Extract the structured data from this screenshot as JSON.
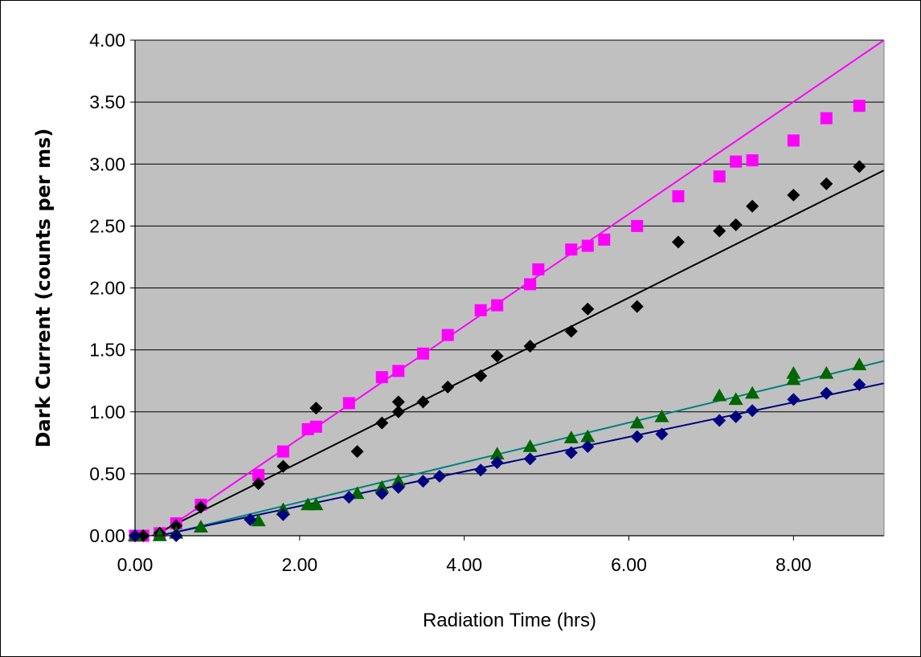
{
  "chart_data": {
    "type": "scatter",
    "title": "",
    "xlabel": "Radiation Time (hrs)",
    "ylabel": "Dark Current (counts per ms)",
    "xlim": [
      0,
      9.1
    ],
    "ylim": [
      0,
      4.0
    ],
    "x_ticks": [
      0,
      2,
      4,
      6,
      8
    ],
    "x_tick_labels": [
      "0.00",
      "2.00",
      "4.00",
      "6.00",
      "8.00"
    ],
    "y_ticks": [
      0,
      0.5,
      1,
      1.5,
      2,
      2.5,
      3,
      3.5,
      4
    ],
    "y_tick_labels": [
      "0.00",
      "0.50",
      "1.00",
      "1.50",
      "2.00",
      "2.50",
      "3.00",
      "3.50",
      "4.00"
    ],
    "grid": "horizontal",
    "legend": "none",
    "plot_background": "#c0c0c0",
    "series": [
      {
        "marker": "square",
        "color": "#ff00ff",
        "points": [
          [
            0.0,
            0.0
          ],
          [
            0.1,
            0.0
          ],
          [
            0.3,
            0.02
          ],
          [
            0.5,
            0.1
          ],
          [
            0.8,
            0.25
          ],
          [
            1.5,
            0.49
          ],
          [
            1.8,
            0.68
          ],
          [
            2.1,
            0.86
          ],
          [
            2.2,
            0.88
          ],
          [
            2.6,
            1.07
          ],
          [
            3.0,
            1.28
          ],
          [
            3.2,
            1.33
          ],
          [
            3.5,
            1.47
          ],
          [
            3.8,
            1.62
          ],
          [
            4.2,
            1.82
          ],
          [
            4.4,
            1.86
          ],
          [
            4.8,
            2.03
          ],
          [
            4.9,
            2.15
          ],
          [
            5.3,
            2.31
          ],
          [
            5.5,
            2.34
          ],
          [
            5.7,
            2.39
          ],
          [
            6.1,
            2.5
          ],
          [
            6.6,
            2.74
          ],
          [
            7.1,
            2.9
          ],
          [
            7.3,
            3.02
          ],
          [
            7.5,
            3.03
          ],
          [
            8.0,
            3.19
          ],
          [
            8.4,
            3.37
          ],
          [
            8.8,
            3.47
          ]
        ],
        "trendline": {
          "color": "#ff00ff",
          "x": [
            0,
            9.1
          ],
          "y": [
            -0.12,
            4.0
          ]
        }
      },
      {
        "marker": "diamond",
        "color": "#000000",
        "points": [
          [
            0.0,
            0.0
          ],
          [
            0.1,
            0.0
          ],
          [
            0.3,
            0.02
          ],
          [
            0.5,
            0.08
          ],
          [
            0.8,
            0.23
          ],
          [
            1.5,
            0.42
          ],
          [
            1.8,
            0.56
          ],
          [
            2.2,
            1.03
          ],
          [
            2.7,
            0.68
          ],
          [
            3.0,
            0.91
          ],
          [
            3.2,
            1.0
          ],
          [
            3.2,
            1.08
          ],
          [
            3.5,
            1.08
          ],
          [
            3.8,
            1.2
          ],
          [
            4.2,
            1.29
          ],
          [
            4.4,
            1.45
          ],
          [
            4.8,
            1.53
          ],
          [
            5.3,
            1.65
          ],
          [
            5.5,
            1.83
          ],
          [
            6.1,
            1.85
          ],
          [
            6.6,
            2.37
          ],
          [
            7.1,
            2.46
          ],
          [
            7.3,
            2.51
          ],
          [
            7.5,
            2.66
          ],
          [
            8.0,
            2.75
          ],
          [
            8.4,
            2.84
          ],
          [
            8.8,
            2.98
          ]
        ],
        "trendline": {
          "color": "#000000",
          "x": [
            0,
            9.1
          ],
          "y": [
            -0.07,
            2.95
          ]
        }
      },
      {
        "marker": "triangle",
        "color": "#006600",
        "points": [
          [
            0.0,
            0.0
          ],
          [
            0.3,
            0.0
          ],
          [
            0.5,
            0.02
          ],
          [
            0.8,
            0.07
          ],
          [
            1.5,
            0.12
          ],
          [
            1.8,
            0.21
          ],
          [
            2.1,
            0.25
          ],
          [
            2.2,
            0.25
          ],
          [
            2.7,
            0.34
          ],
          [
            3.0,
            0.39
          ],
          [
            3.2,
            0.44
          ],
          [
            4.4,
            0.66
          ],
          [
            4.8,
            0.72
          ],
          [
            5.3,
            0.79
          ],
          [
            5.5,
            0.8
          ],
          [
            6.1,
            0.91
          ],
          [
            6.4,
            0.96
          ],
          [
            7.1,
            1.13
          ],
          [
            7.3,
            1.1
          ],
          [
            7.5,
            1.15
          ],
          [
            8.0,
            1.26
          ],
          [
            8.0,
            1.31
          ],
          [
            8.4,
            1.31
          ],
          [
            8.8,
            1.38
          ]
        ],
        "trendline": {
          "color": "#008080",
          "x": [
            0,
            9.1
          ],
          "y": [
            -0.05,
            1.41
          ]
        }
      },
      {
        "marker": "diamond",
        "color": "#000080",
        "points": [
          [
            0.0,
            0.0
          ],
          [
            0.5,
            0.0
          ],
          [
            1.4,
            0.13
          ],
          [
            1.8,
            0.17
          ],
          [
            2.6,
            0.31
          ],
          [
            3.0,
            0.34
          ],
          [
            3.2,
            0.39
          ],
          [
            3.5,
            0.44
          ],
          [
            3.7,
            0.48
          ],
          [
            4.2,
            0.53
          ],
          [
            4.4,
            0.59
          ],
          [
            4.8,
            0.62
          ],
          [
            5.3,
            0.67
          ],
          [
            5.5,
            0.72
          ],
          [
            6.1,
            0.8
          ],
          [
            6.4,
            0.82
          ],
          [
            7.1,
            0.93
          ],
          [
            7.3,
            0.96
          ],
          [
            7.5,
            1.01
          ],
          [
            8.0,
            1.1
          ],
          [
            8.4,
            1.15
          ],
          [
            8.8,
            1.22
          ]
        ],
        "trendline": {
          "color": "#000080",
          "x": [
            0,
            9.1
          ],
          "y": [
            -0.04,
            1.23
          ]
        }
      }
    ]
  }
}
